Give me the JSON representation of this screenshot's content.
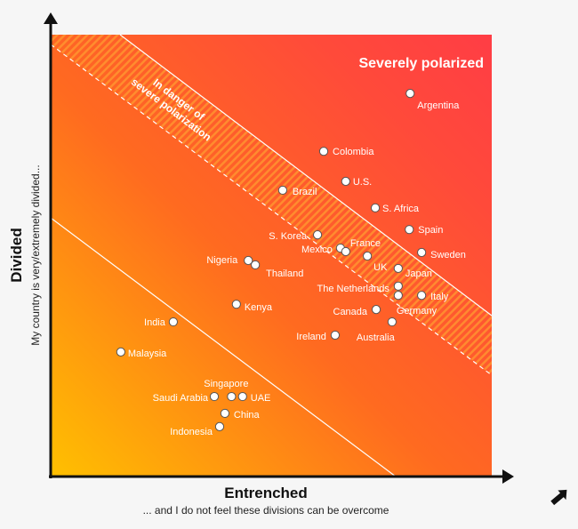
{
  "chart_data": {
    "type": "scatter",
    "title": "",
    "xlabel": "Entrenched",
    "xlabel_sub": "... and I do not feel these divisions can be overcome",
    "ylabel": "Divided",
    "ylabel_sub": "My country is very/extremely divided...",
    "xlim": [
      0,
      100
    ],
    "ylim": [
      0,
      100
    ],
    "grid": false,
    "zones": {
      "severe": "Severely polarized",
      "danger_line1": "In danger of",
      "danger_line2": "severe polarization"
    },
    "points": [
      {
        "label": "Argentina",
        "x": 81.5,
        "y": 86.7
      },
      {
        "label": "Colombia",
        "x": 61.9,
        "y": 73.6
      },
      {
        "label": "U.S.",
        "x": 66.9,
        "y": 66.8
      },
      {
        "label": "Brazil",
        "x": 52.6,
        "y": 64.8
      },
      {
        "label": "S. Africa",
        "x": 73.6,
        "y": 60.8
      },
      {
        "label": "Spain",
        "x": 81.3,
        "y": 55.9
      },
      {
        "label": "S. Korea",
        "x": 60.5,
        "y": 54.7
      },
      {
        "label": "Mexico",
        "x": 65.7,
        "y": 51.7
      },
      {
        "label": "France",
        "x": 66.9,
        "y": 50.9
      },
      {
        "label": "Sweden",
        "x": 84.1,
        "y": 50.7
      },
      {
        "label": "UK",
        "x": 71.8,
        "y": 49.9
      },
      {
        "label": "Nigeria",
        "x": 44.8,
        "y": 48.9
      },
      {
        "label": "Thailand",
        "x": 46.4,
        "y": 47.9
      },
      {
        "label": "Japan",
        "x": 78.8,
        "y": 47.1
      },
      {
        "label": "The Netherlands",
        "x": 78.8,
        "y": 43.1
      },
      {
        "label": "Germany",
        "x": 78.8,
        "y": 41.0
      },
      {
        "label": "Italy",
        "x": 84.1,
        "y": 41.0
      },
      {
        "label": "Kenya",
        "x": 42.1,
        "y": 39.0
      },
      {
        "label": "Canada",
        "x": 73.8,
        "y": 37.8
      },
      {
        "label": "India",
        "x": 27.8,
        "y": 35.0
      },
      {
        "label": "Australia",
        "x": 77.4,
        "y": 35.0
      },
      {
        "label": "Ireland",
        "x": 64.5,
        "y": 32.0
      },
      {
        "label": "Malaysia",
        "x": 15.9,
        "y": 28.2
      },
      {
        "label": "Saudi Arabia",
        "x": 37.1,
        "y": 18.1
      },
      {
        "label": "Singapore",
        "x": 41.0,
        "y": 18.1
      },
      {
        "label": "UAE",
        "x": 43.5,
        "y": 18.1
      },
      {
        "label": "China",
        "x": 39.5,
        "y": 14.3
      },
      {
        "label": "Indonesia",
        "x": 38.3,
        "y": 11.3
      }
    ]
  },
  "colors": {
    "gradient_low": "#ffc000",
    "gradient_mid": "#ff6a20",
    "gradient_high": "#ff3f44",
    "point_fill": "#ffffff",
    "point_stroke": "#555555",
    "axis": "#111111"
  }
}
